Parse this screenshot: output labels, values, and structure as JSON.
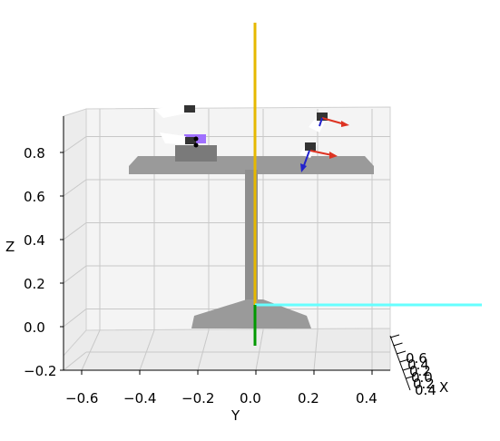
{
  "chart_data": {
    "type": "scatter",
    "projection": "3d",
    "axes": {
      "x": {
        "label": "X",
        "ticks": [
          "0.6",
          "0.4",
          "0.2",
          "0.0",
          "0.2",
          "0.4"
        ]
      },
      "y": {
        "label": "Y",
        "ticks": [
          "−0.6",
          "−0.4",
          "−0.2",
          "0.0",
          "0.2",
          "0.4"
        ],
        "range": [
          -0.65,
          0.47
        ]
      },
      "z": {
        "label": "Z",
        "ticks": [
          "−0.2",
          "0.0",
          "0.2",
          "0.4",
          "0.6",
          "0.8"
        ],
        "range": [
          -0.2,
          0.9
        ]
      }
    },
    "grid": true,
    "colors": {
      "pane": "#f2f2f2",
      "grid": "#c8c8c8",
      "table": "#999999",
      "object": "#666666",
      "marker": "#a070ff",
      "z_axis_line": "#e6b800",
      "x_axis_line": "#66ffff",
      "y_axis_line": "#009900",
      "arrow_x": "#dd3322",
      "arrow_z": "#2222cc"
    }
  }
}
